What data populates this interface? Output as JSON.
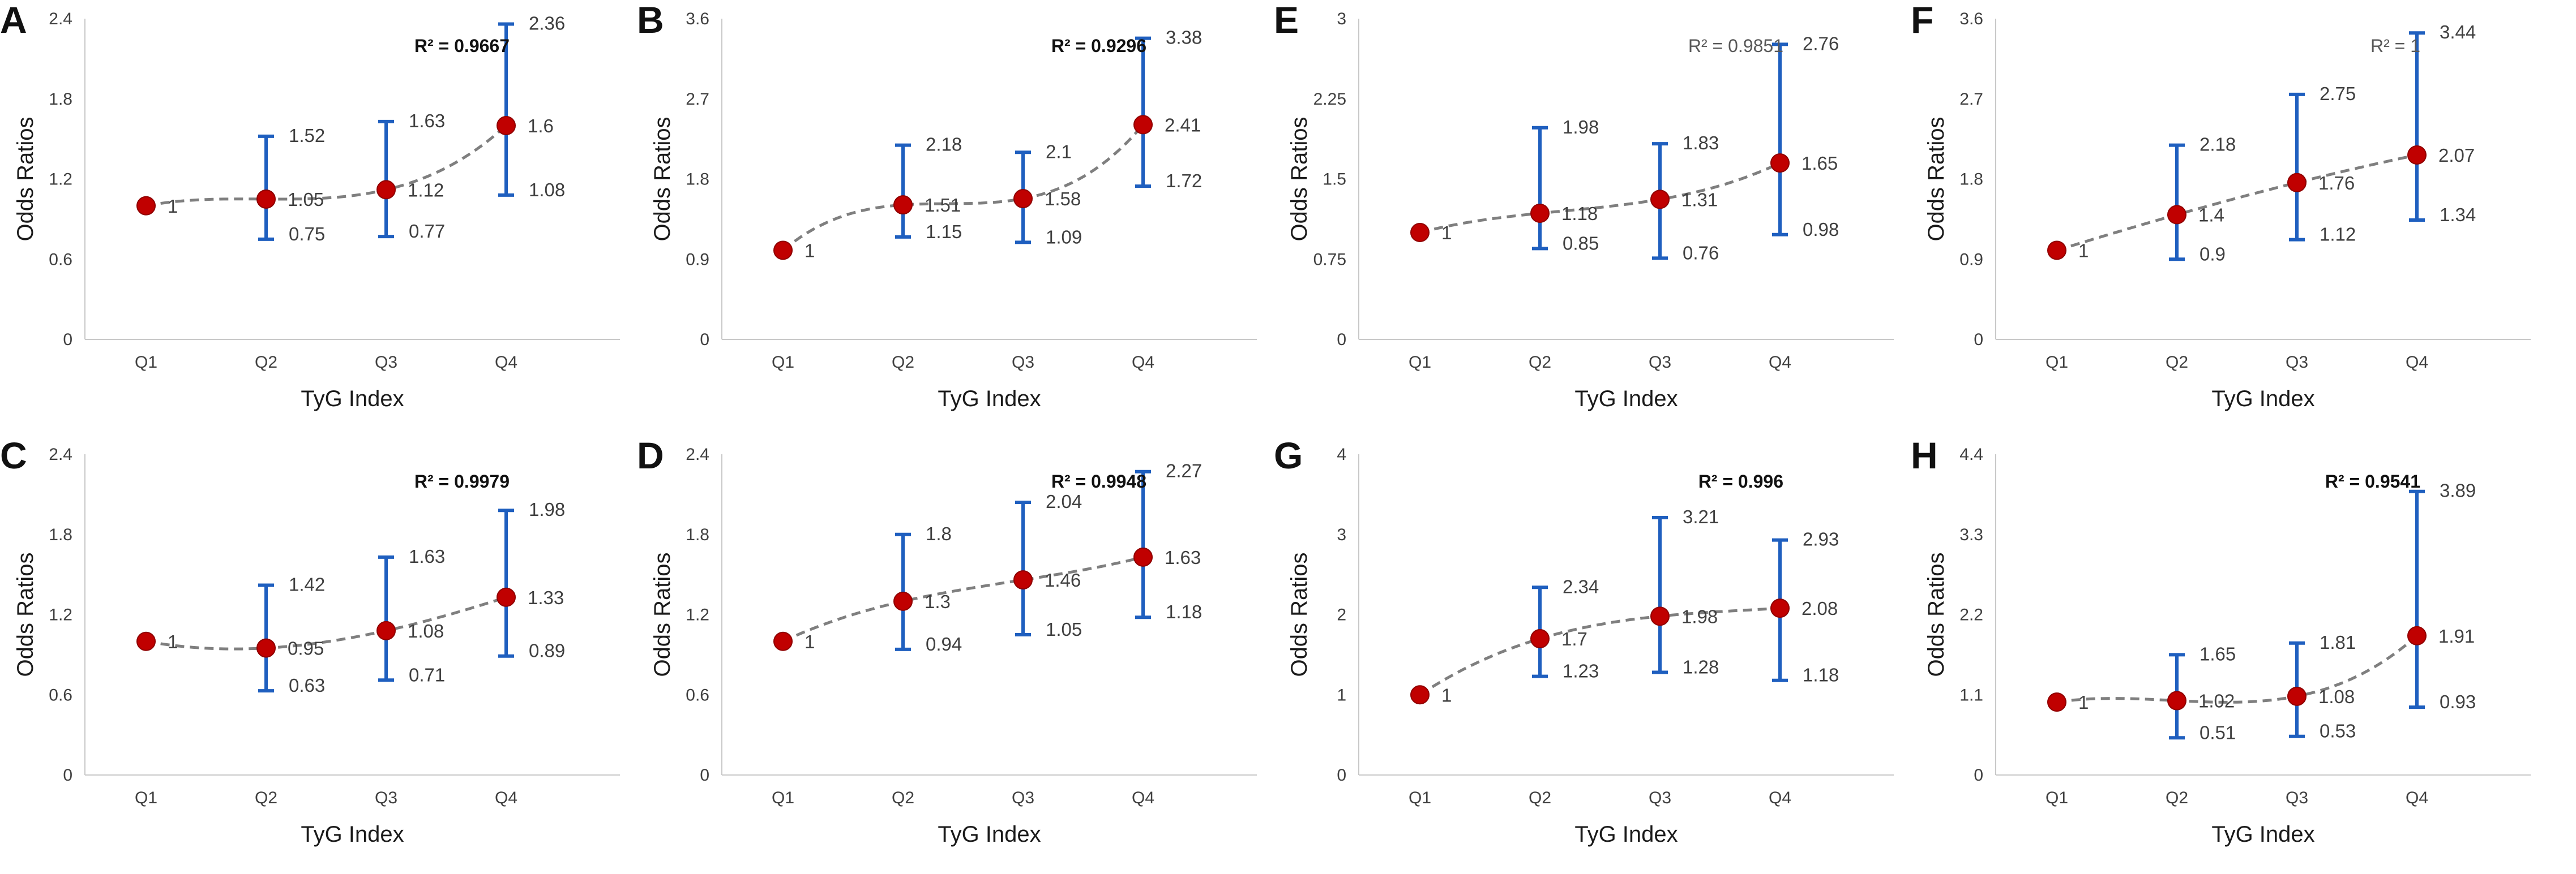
{
  "figure": {
    "accent_color": "#c00000",
    "errorbar_color": "#1f5fbf",
    "trend_color": "#7f7f7f"
  },
  "chart_data": [
    {
      "panel": "A",
      "type": "scatter",
      "categories": [
        "Q1",
        "Q2",
        "Q3",
        "Q4"
      ],
      "series": [
        {
          "name": "Odds Ratios",
          "values": [
            1,
            1.05,
            1.12,
            1.6
          ]
        }
      ],
      "lower": [
        null,
        0.75,
        0.77,
        1.08
      ],
      "upper": [
        null,
        1.52,
        1.63,
        2.36
      ],
      "value_labels": [
        "1",
        "1.05",
        "1.12",
        "1.6"
      ],
      "lower_labels": [
        "",
        "0.75",
        "0.77",
        "1.08"
      ],
      "upper_labels": [
        "",
        "1.52",
        "1.63",
        "2.36"
      ],
      "ylim": [
        0,
        2.4
      ],
      "yticks": [
        "0",
        "0.6",
        "1.2",
        "1.8",
        "2.4"
      ],
      "xlabel": "TyG Index",
      "ylabel": "Odds Ratios",
      "r2": "R² = 0.9667",
      "r2_bold": true,
      "r2_pos": "top-right"
    },
    {
      "panel": "B",
      "type": "scatter",
      "categories": [
        "Q1",
        "Q2",
        "Q3",
        "Q4"
      ],
      "series": [
        {
          "name": "Odds Ratios",
          "values": [
            1,
            1.51,
            1.58,
            2.41
          ]
        }
      ],
      "lower": [
        null,
        1.15,
        1.09,
        1.72
      ],
      "upper": [
        null,
        2.18,
        2.1,
        3.38
      ],
      "value_labels": [
        "1",
        "1.51",
        "1.58",
        "2.41"
      ],
      "lower_labels": [
        "",
        "1.15",
        "1.09",
        "1.72"
      ],
      "upper_labels": [
        "",
        "2.18",
        "2.1",
        "3.38"
      ],
      "ylim": [
        0,
        3.6
      ],
      "yticks": [
        "0",
        "0.9",
        "1.8",
        "2.7",
        "3.6"
      ],
      "xlabel": "TyG Index",
      "ylabel": "Odds Ratios",
      "r2": "R² = 0.9296",
      "r2_bold": true,
      "r2_pos": "top-right"
    },
    {
      "panel": "E",
      "type": "scatter",
      "categories": [
        "Q1",
        "Q2",
        "Q3",
        "Q4"
      ],
      "series": [
        {
          "name": "Odds Ratios",
          "values": [
            1,
            1.18,
            1.31,
            1.65
          ]
        }
      ],
      "lower": [
        null,
        0.85,
        0.76,
        0.98
      ],
      "upper": [
        null,
        1.98,
        1.83,
        2.76
      ],
      "value_labels": [
        "1",
        "1.18",
        "1.31",
        "1.65"
      ],
      "lower_labels": [
        "",
        "0.85",
        "0.76",
        "0.98"
      ],
      "upper_labels": [
        "",
        "1.98",
        "1.83",
        "2.76"
      ],
      "ylim": [
        0,
        3
      ],
      "yticks": [
        "0",
        "0.75",
        "1.5",
        "2.25",
        "3"
      ],
      "xlabel": "TyG Index",
      "ylabel": "Odds Ratios",
      "r2": "R² = 0.9851",
      "r2_bold": false,
      "r2_pos": "top-right"
    },
    {
      "panel": "F",
      "type": "scatter",
      "categories": [
        "Q1",
        "Q2",
        "Q3",
        "Q4"
      ],
      "series": [
        {
          "name": "Odds Ratios",
          "values": [
            1,
            1.4,
            1.76,
            2.07
          ]
        }
      ],
      "lower": [
        null,
        0.9,
        1.12,
        1.34
      ],
      "upper": [
        null,
        2.18,
        2.75,
        3.44
      ],
      "value_labels": [
        "1",
        "1.4",
        "1.76",
        "2.07"
      ],
      "lower_labels": [
        "",
        "0.9",
        "1.12",
        "1.34"
      ],
      "upper_labels": [
        "",
        "2.18",
        "2.75",
        "3.44"
      ],
      "ylim": [
        0,
        3.6
      ],
      "yticks": [
        "0",
        "0.9",
        "1.8",
        "2.7",
        "3.6"
      ],
      "xlabel": "TyG Index",
      "ylabel": "Odds Ratios",
      "r2": "R² = 1",
      "r2_bold": false,
      "r2_pos": "top-right"
    },
    {
      "panel": "C",
      "type": "scatter",
      "categories": [
        "Q1",
        "Q2",
        "Q3",
        "Q4"
      ],
      "series": [
        {
          "name": "Odds Ratios",
          "values": [
            1,
            0.95,
            1.08,
            1.33
          ]
        }
      ],
      "lower": [
        null,
        0.63,
        0.71,
        0.89
      ],
      "upper": [
        null,
        1.42,
        1.63,
        1.98
      ],
      "value_labels": [
        "1",
        "0.95",
        "1.08",
        "1.33"
      ],
      "lower_labels": [
        "",
        "0.63",
        "0.71",
        "0.89"
      ],
      "upper_labels": [
        "",
        "1.42",
        "1.63",
        "1.98"
      ],
      "ylim": [
        0,
        2.4
      ],
      "yticks": [
        "0",
        "0.6",
        "1.2",
        "1.8",
        "2.4"
      ],
      "xlabel": "TyG Index",
      "ylabel": "Odds Ratios",
      "r2": "R² = 0.9979",
      "r2_bold": true,
      "r2_pos": "top-right"
    },
    {
      "panel": "D",
      "type": "scatter",
      "categories": [
        "Q1",
        "Q2",
        "Q3",
        "Q4"
      ],
      "series": [
        {
          "name": "Odds Ratios",
          "values": [
            1,
            1.3,
            1.46,
            1.63
          ]
        }
      ],
      "lower": [
        null,
        0.94,
        1.05,
        1.18
      ],
      "upper": [
        null,
        1.8,
        2.04,
        2.27
      ],
      "value_labels": [
        "1",
        "1.3",
        "1.46",
        "1.63"
      ],
      "lower_labels": [
        "",
        "0.94",
        "1.05",
        "1.18"
      ],
      "upper_labels": [
        "",
        "1.8",
        "2.04",
        "2.27"
      ],
      "ylim": [
        0,
        2.4
      ],
      "yticks": [
        "0",
        "0.6",
        "1.2",
        "1.8",
        "2.4"
      ],
      "xlabel": "TyG Index",
      "ylabel": "Odds Ratios",
      "r2": "R² = 0.9948",
      "r2_bold": true,
      "r2_pos": "top-right"
    },
    {
      "panel": "G",
      "type": "scatter",
      "categories": [
        "Q1",
        "Q2",
        "Q3",
        "Q4"
      ],
      "series": [
        {
          "name": "Odds Ratios",
          "values": [
            1,
            1.7,
            1.98,
            2.08
          ]
        }
      ],
      "lower": [
        null,
        1.23,
        1.28,
        1.18
      ],
      "upper": [
        null,
        2.34,
        3.21,
        2.93
      ],
      "value_labels": [
        "1",
        "1.7",
        "1.98",
        "2.08"
      ],
      "lower_labels": [
        "",
        "1.23",
        "1.28",
        "1.18"
      ],
      "upper_labels": [
        "",
        "2.34",
        "3.21",
        "2.93"
      ],
      "ylim": [
        0,
        4
      ],
      "yticks": [
        "0",
        "1",
        "2",
        "3",
        "4"
      ],
      "xlabel": "TyG Index",
      "ylabel": "Odds Ratios",
      "r2": "R² = 0.996",
      "r2_bold": true,
      "r2_pos": "top-right"
    },
    {
      "panel": "H",
      "type": "scatter",
      "categories": [
        "Q1",
        "Q2",
        "Q3",
        "Q4"
      ],
      "series": [
        {
          "name": "Odds Ratios",
          "values": [
            1,
            1.02,
            1.08,
            1.91
          ]
        }
      ],
      "lower": [
        null,
        0.51,
        0.53,
        0.93
      ],
      "upper": [
        null,
        1.65,
        1.81,
        3.89
      ],
      "value_labels": [
        "1",
        "1.02",
        "1.08",
        "1.91"
      ],
      "lower_labels": [
        "",
        "0.51",
        "0.53",
        "0.93"
      ],
      "upper_labels": [
        "",
        "1.65",
        "1.81",
        "3.89"
      ],
      "ylim": [
        0,
        4.4
      ],
      "yticks": [
        "0",
        "1.1",
        "2.2",
        "3.3",
        "4.4"
      ],
      "xlabel": "TyG Index",
      "ylabel": "Odds Ratios",
      "r2": "R² = 0.9541",
      "r2_bold": true,
      "r2_pos": "top-right"
    }
  ]
}
